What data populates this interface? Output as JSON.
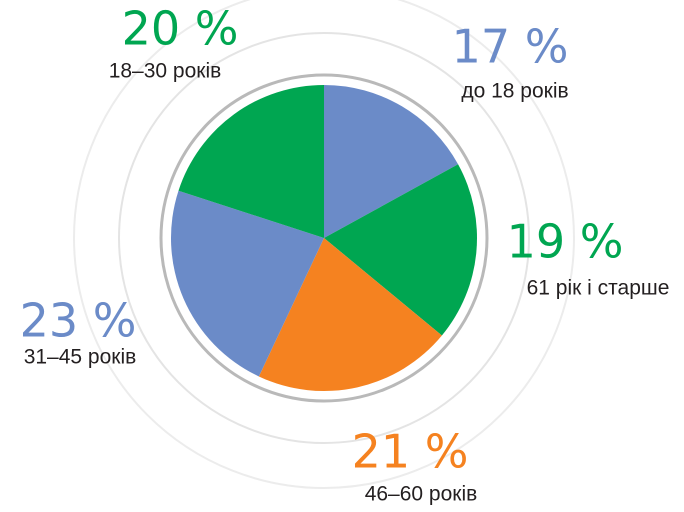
{
  "chart_data": {
    "type": "pie",
    "categories": [
      "до 18 років",
      "61 рік і старше",
      "46–60 років",
      "31–45 років",
      "18–30 років"
    ],
    "values": [
      17,
      19,
      21,
      23,
      20
    ],
    "value_labels": [
      "17 %",
      "19 %",
      "21 %",
      "23 %",
      "20 %"
    ],
    "colors": [
      "#6b8bc8",
      "#00a651",
      "#f58220",
      "#6b8bc8",
      "#00a651"
    ]
  }
}
